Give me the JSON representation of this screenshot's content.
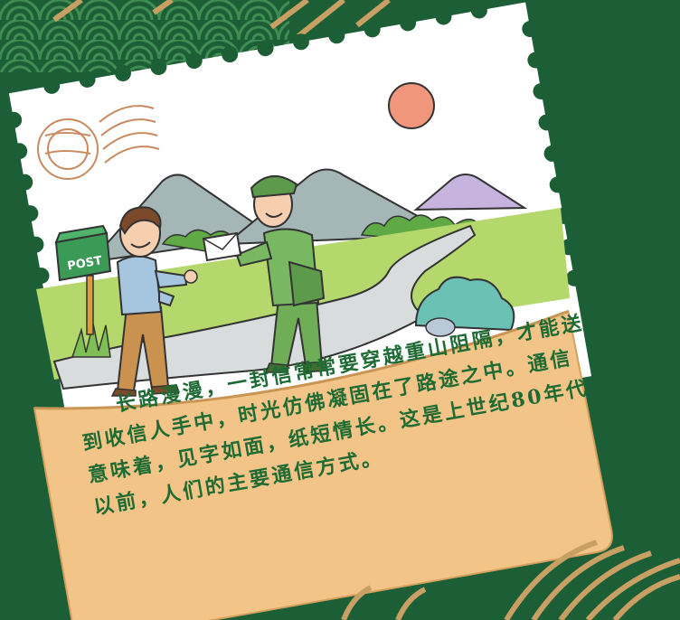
{
  "illustration": {
    "title": "Postman delivering a letter along a mountain road",
    "mailbox_label": "POST"
  },
  "caption": {
    "paragraph": "长路漫漫，一封信常常要穿越重山阻隔，才能送到收信人手中，时光仿佛凝固在了路途之中。通信意味着，见字如面，纸短情长。这是上世纪80年代以前，人们的主要通信方式。"
  },
  "colors": {
    "background": "#1c5e35",
    "paper": "#ffffff",
    "envelope": "#f3c488",
    "text": "#1f6b34",
    "sun": "#f0967a"
  }
}
